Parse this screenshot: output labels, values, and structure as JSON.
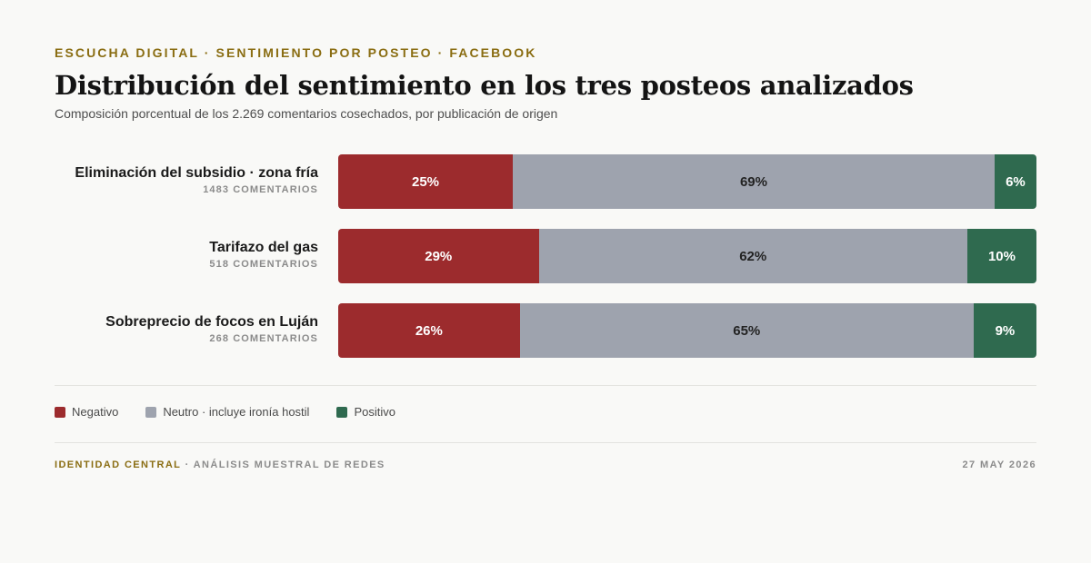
{
  "header": {
    "eyebrow": "ESCUCHA DIGITAL · SENTIMIENTO POR POSTEO · FACEBOOK",
    "title": "Distribución del sentimiento en los tres posteos analizados",
    "subtitle": "Composición porcentual de los 2.269 comentarios cosechados, por publicación de origen"
  },
  "colors": {
    "negativo": "#9c2b2d",
    "neutro": "#9ea3ae",
    "positivo": "#2f6a4f",
    "accent": "#8a6d12"
  },
  "chart_data": {
    "type": "bar",
    "orientation": "horizontal",
    "stacked": true,
    "normalized_percent": true,
    "categories": [
      "Eliminación del subsidio · zona fría",
      "Tarifazo del gas",
      "Sobreprecio de focos en Luján"
    ],
    "category_counts": [
      "1483 COMENTARIOS",
      "518 COMENTARIOS",
      "268 COMENTARIOS"
    ],
    "series": [
      {
        "name": "Negativo",
        "values": [
          25,
          29,
          26
        ],
        "labels": [
          "25%",
          "29%",
          "26%"
        ]
      },
      {
        "name": "Neutro · incluye ironía hostil",
        "values": [
          69,
          62,
          65
        ],
        "labels": [
          "69%",
          "62%",
          "65%"
        ]
      },
      {
        "name": "Positivo",
        "values": [
          6,
          10,
          9
        ],
        "labels": [
          "6%",
          "10%",
          "9%"
        ]
      }
    ],
    "xlim": [
      0,
      100
    ],
    "legend_position": "bottom-left"
  },
  "legend": {
    "negativo": "Negativo",
    "neutro": "Neutro · incluye ironía hostil",
    "positivo": "Positivo"
  },
  "footer": {
    "brand": "IDENTIDAD CENTRAL",
    "rest": " · ANÁLISIS MUESTRAL DE REDES",
    "date": "27 MAY 2026"
  }
}
